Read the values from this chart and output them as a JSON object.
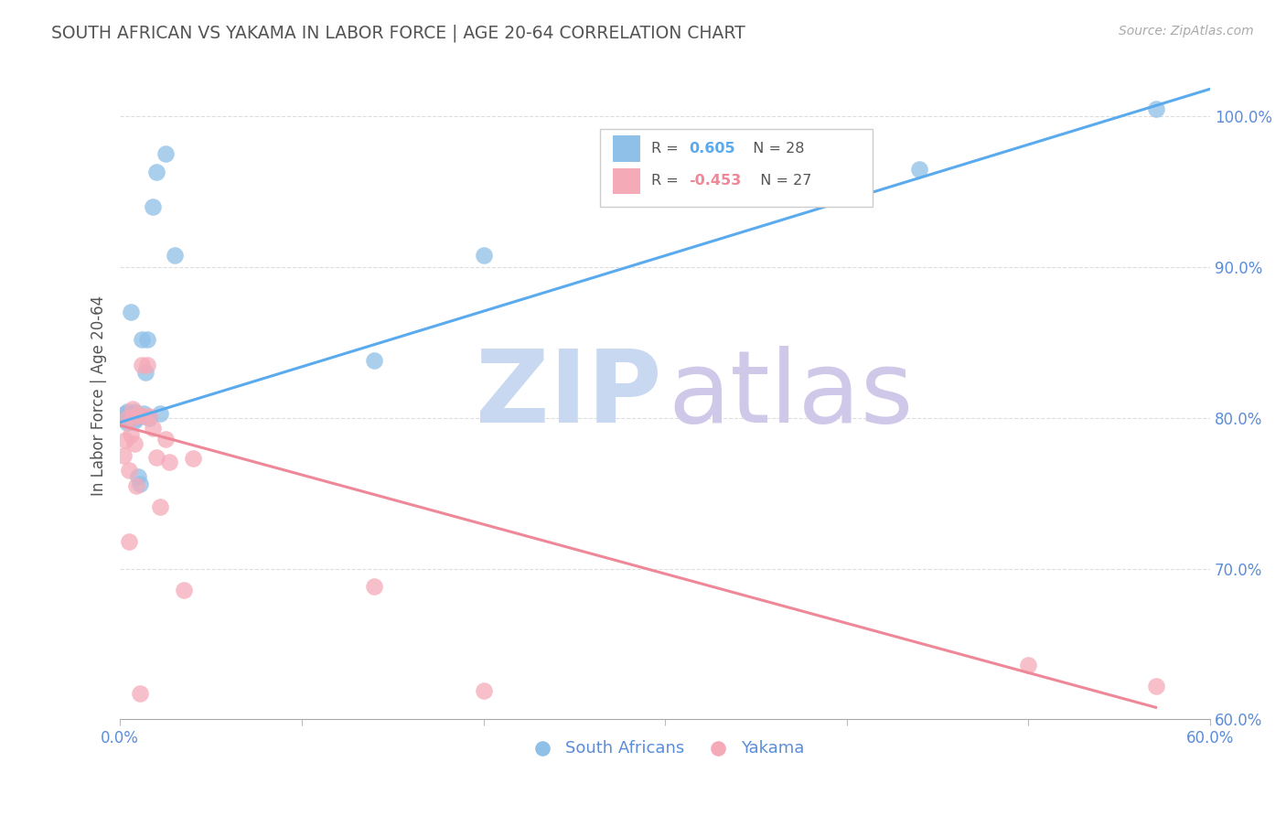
{
  "title": "SOUTH AFRICAN VS YAKAMA IN LABOR FORCE | AGE 20-64 CORRELATION CHART",
  "source": "Source: ZipAtlas.com",
  "ylabel": "In Labor Force | Age 20-64",
  "xlim": [
    0.0,
    0.6
  ],
  "ylim": [
    0.6,
    1.03
  ],
  "xticks": [
    0.0,
    0.1,
    0.2,
    0.3,
    0.4,
    0.5,
    0.6
  ],
  "xtick_labels": [
    "0.0%",
    "",
    "",
    "",
    "",
    "",
    "60.0%"
  ],
  "ytick_labels": [
    "100.0%",
    "90.0%",
    "80.0%",
    "70.0%",
    "60.0%"
  ],
  "yticks": [
    1.0,
    0.9,
    0.8,
    0.7,
    0.6
  ],
  "blue_R": "0.605",
  "blue_N": "28",
  "pink_R": "-0.453",
  "pink_N": "27",
  "blue_scatter_x": [
    0.002,
    0.003,
    0.003,
    0.004,
    0.004,
    0.005,
    0.005,
    0.006,
    0.007,
    0.008,
    0.008,
    0.009,
    0.01,
    0.011,
    0.012,
    0.013,
    0.014,
    0.015,
    0.016,
    0.018,
    0.02,
    0.022,
    0.025,
    0.03,
    0.14,
    0.2,
    0.44,
    0.57
  ],
  "blue_scatter_y": [
    0.8,
    0.803,
    0.799,
    0.797,
    0.804,
    0.8,
    0.803,
    0.87,
    0.803,
    0.798,
    0.804,
    0.8,
    0.761,
    0.756,
    0.852,
    0.803,
    0.83,
    0.852,
    0.8,
    0.94,
    0.963,
    0.803,
    0.975,
    0.908,
    0.838,
    0.908,
    0.965,
    1.005
  ],
  "pink_scatter_x": [
    0.002,
    0.003,
    0.004,
    0.005,
    0.005,
    0.006,
    0.007,
    0.007,
    0.008,
    0.009,
    0.01,
    0.011,
    0.012,
    0.013,
    0.015,
    0.016,
    0.018,
    0.02,
    0.022,
    0.025,
    0.027,
    0.035,
    0.04,
    0.14,
    0.2,
    0.5,
    0.57
  ],
  "pink_scatter_y": [
    0.775,
    0.785,
    0.8,
    0.765,
    0.718,
    0.789,
    0.8,
    0.806,
    0.783,
    0.755,
    0.802,
    0.617,
    0.835,
    0.801,
    0.835,
    0.801,
    0.793,
    0.774,
    0.741,
    0.786,
    0.771,
    0.686,
    0.773,
    0.688,
    0.619,
    0.636,
    0.622
  ],
  "blue_line_x": [
    0.0,
    0.6
  ],
  "blue_line_y": [
    0.797,
    1.018
  ],
  "pink_line_x": [
    0.0,
    0.57
  ],
  "pink_line_y": [
    0.795,
    0.608
  ],
  "blue_color": "#8ec0e8",
  "pink_color": "#f5aab8",
  "blue_line_color": "#5aaaee",
  "pink_line_color": "#ee8898",
  "title_color": "#555555",
  "axis_label_color": "#5b8dd9",
  "grid_color": "#dddddd",
  "ylabel_color": "#555555",
  "watermark_zip_color": "#c8d8f0",
  "watermark_atlas_color": "#d0c8e8",
  "legend_box_color": "#eeeeee",
  "legend_blue_color": "#5aaaee",
  "legend_pink_color": "#ee8898",
  "legend_text_color": "#555555",
  "bottom_legend_color": "#5b8dd9"
}
